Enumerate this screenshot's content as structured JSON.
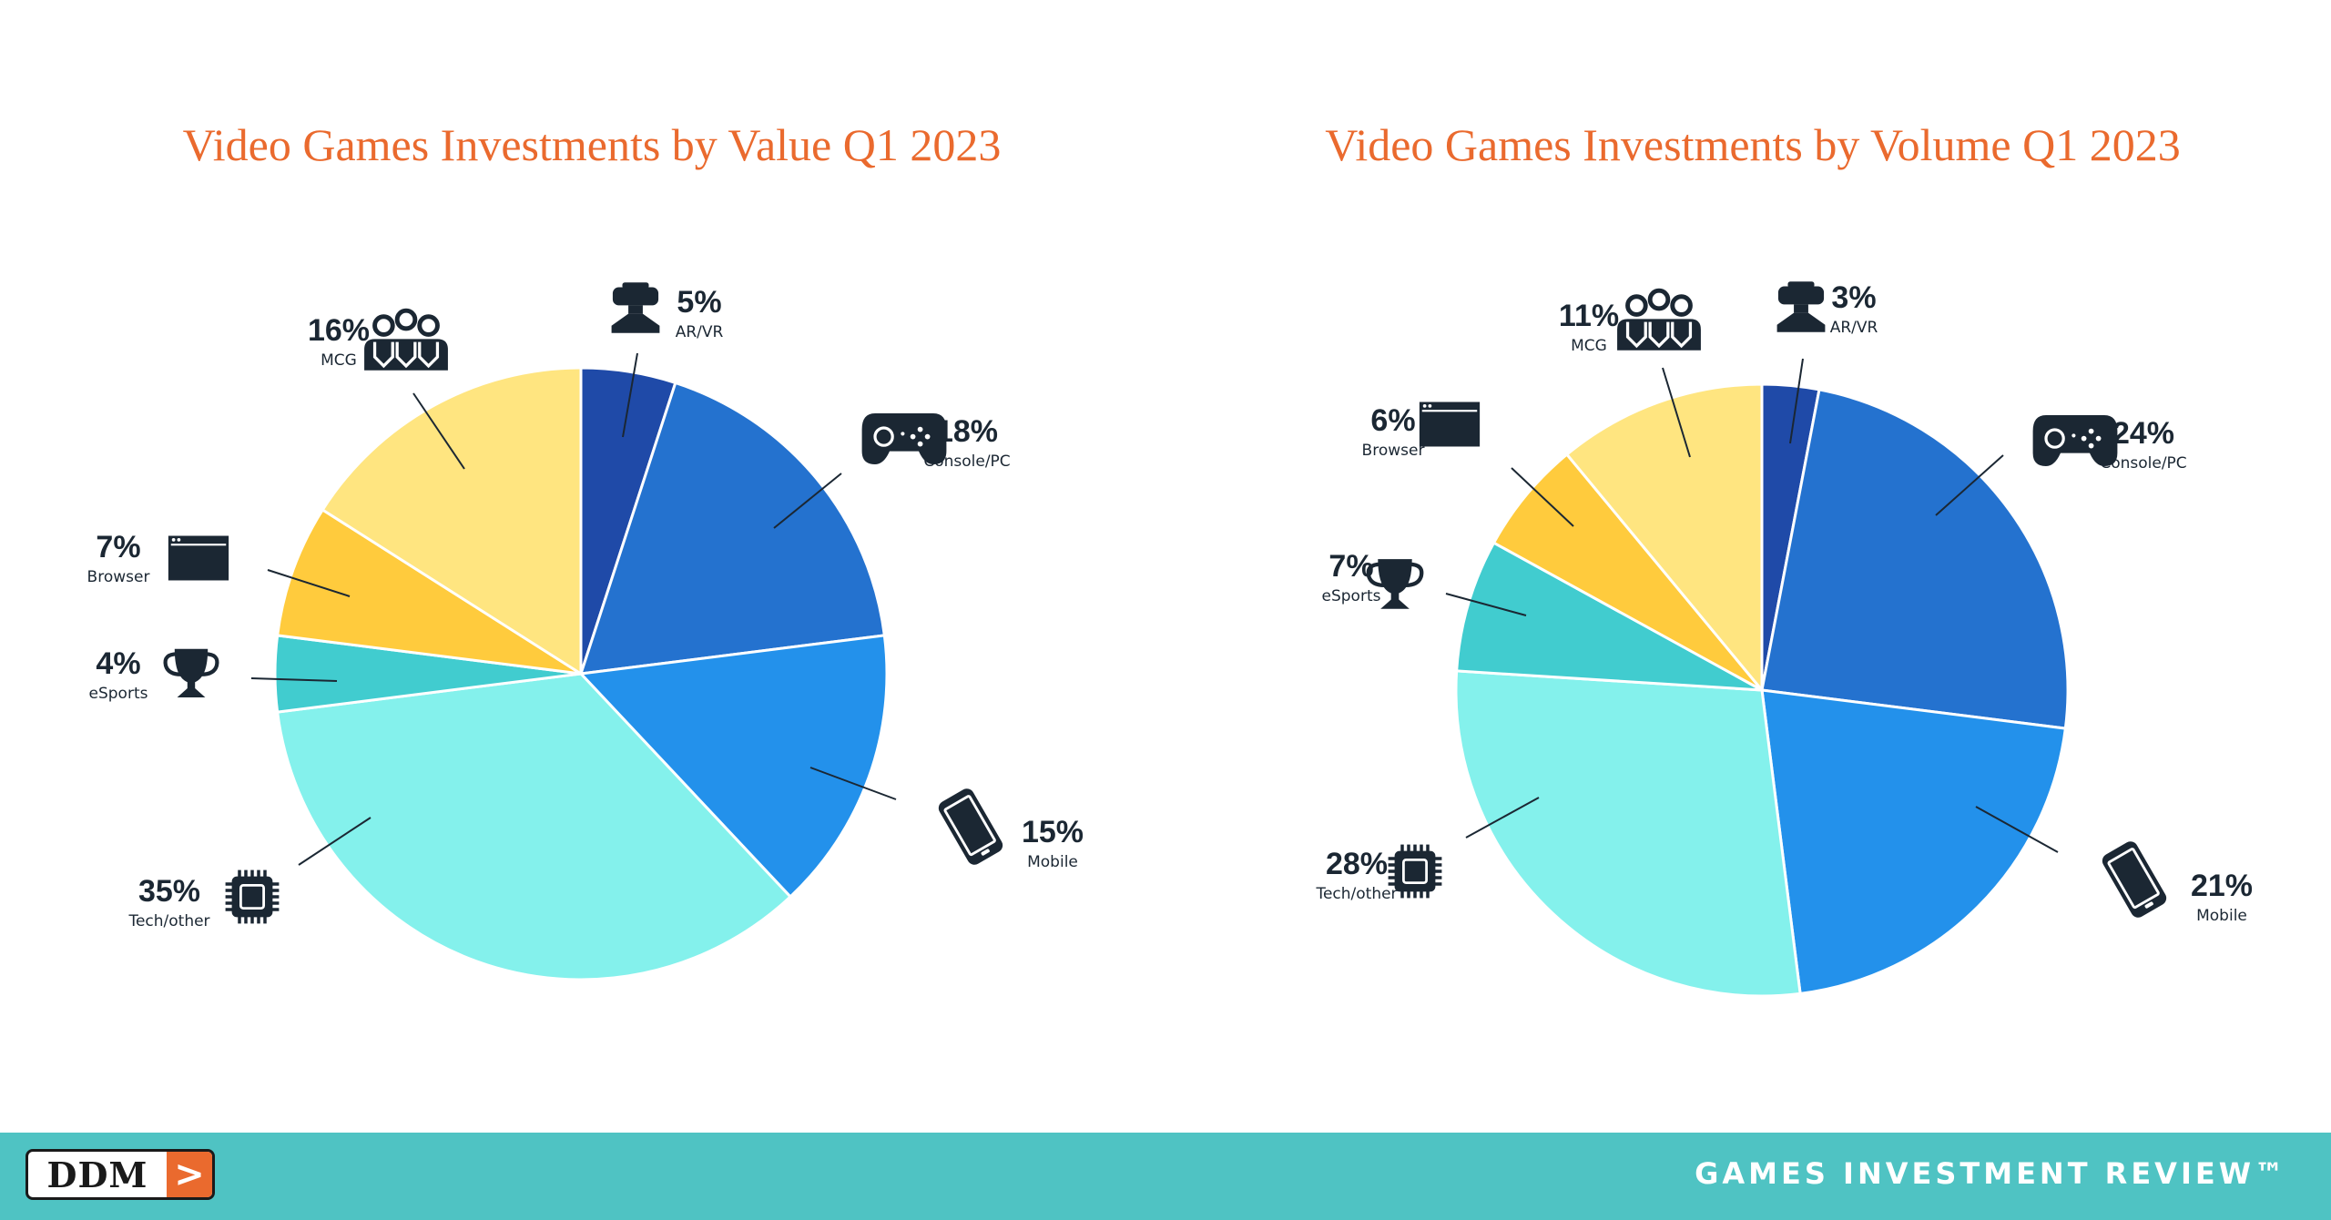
{
  "chart_data": [
    {
      "type": "pie",
      "title": "Video Games Investments by Value Q1 2023",
      "slices": [
        {
          "label": "AR/VR",
          "value": 5,
          "display": "5%",
          "color": "#1f4aa8",
          "icon": "vr-headset-icon"
        },
        {
          "label": "Console/PC",
          "value": 18,
          "display": "18%",
          "color": "#2472cf",
          "icon": "gamepad-icon"
        },
        {
          "label": "Mobile",
          "value": 15,
          "display": "15%",
          "color": "#2391eb",
          "icon": "mobile-phone-icon"
        },
        {
          "label": "Tech/other",
          "value": 35,
          "display": "35%",
          "color": "#84f1ec",
          "icon": "chip-icon"
        },
        {
          "label": "eSports",
          "value": 4,
          "display": "4%",
          "color": "#41cccf",
          "icon": "trophy-icon"
        },
        {
          "label": "Browser",
          "value": 7,
          "display": "7%",
          "color": "#ffcb3d",
          "icon": "browser-window-icon"
        },
        {
          "label": "MCG",
          "value": 16,
          "display": "16%",
          "color": "#ffe580",
          "icon": "people-group-icon"
        }
      ]
    },
    {
      "type": "pie",
      "title": "Video Games Investments by Volume Q1 2023",
      "slices": [
        {
          "label": "AR/VR",
          "value": 3,
          "display": "3%",
          "color": "#1f4aa8",
          "icon": "vr-headset-icon"
        },
        {
          "label": "Console/PC",
          "value": 24,
          "display": "24%",
          "color": "#2472cf",
          "icon": "gamepad-icon"
        },
        {
          "label": "Mobile",
          "value": 21,
          "display": "21%",
          "color": "#2391eb",
          "icon": "mobile-phone-icon"
        },
        {
          "label": "Tech/other",
          "value": 28,
          "display": "28%",
          "color": "#84f1ec",
          "icon": "chip-icon"
        },
        {
          "label": "eSports",
          "value": 7,
          "display": "7%",
          "color": "#41cccf",
          "icon": "trophy-icon"
        },
        {
          "label": "Browser",
          "value": 6,
          "display": "6%",
          "color": "#ffcb3d",
          "icon": "browser-window-icon"
        },
        {
          "label": "MCG",
          "value": 11,
          "display": "11%",
          "color": "#ffe580",
          "icon": "people-group-icon"
        }
      ]
    }
  ],
  "footer": {
    "logo_text": "DDM",
    "logo_arrow": ">",
    "brand": "GAMES INVESTMENT REVIEW™"
  },
  "colors": {
    "title": "#ea6a2e",
    "footer_bg": "#4fc3c3",
    "icon": "#1b2733",
    "logo_accent": "#ea6a2e"
  }
}
